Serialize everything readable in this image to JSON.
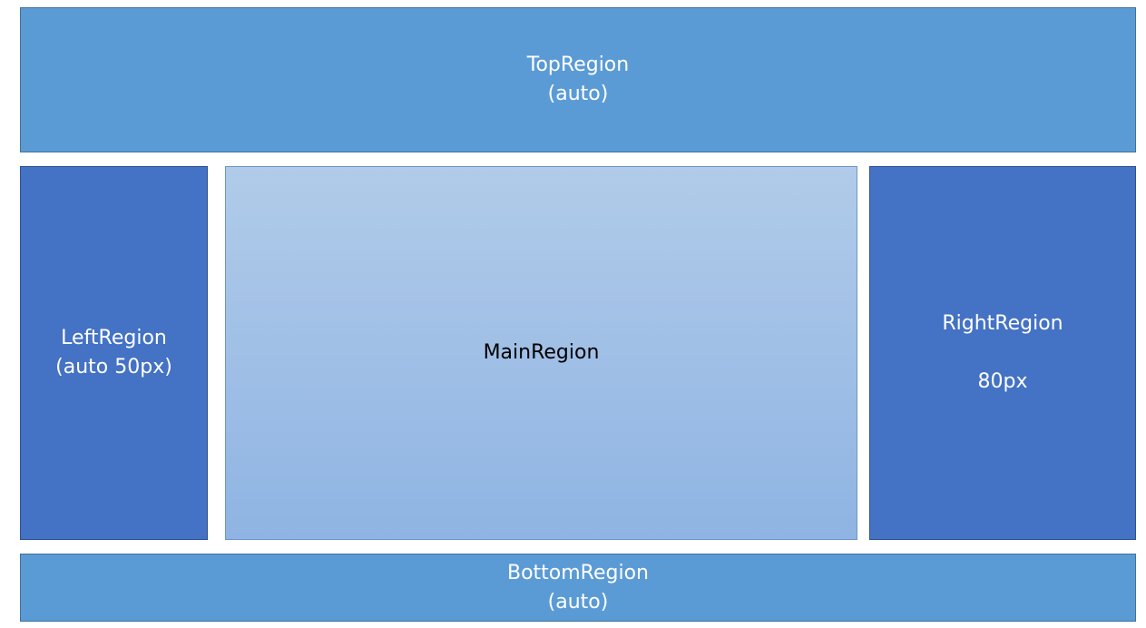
{
  "regions": {
    "top": {
      "line1": "TopRegion",
      "line2": "(auto)"
    },
    "left": {
      "line1": "LeftRegion",
      "line2": "(auto 50px)"
    },
    "main": {
      "line1": "MainRegion"
    },
    "right": {
      "line1": "RightRegion",
      "line2": "80px"
    },
    "bottom": {
      "line1": "BottomRegion",
      "line2": "(auto)"
    }
  },
  "colors": {
    "outer_regions": "#5b9bd5",
    "side_regions": "#4472c4",
    "main_region_top": "#b1cbe9",
    "main_region_bottom": "#8fb4e3"
  }
}
